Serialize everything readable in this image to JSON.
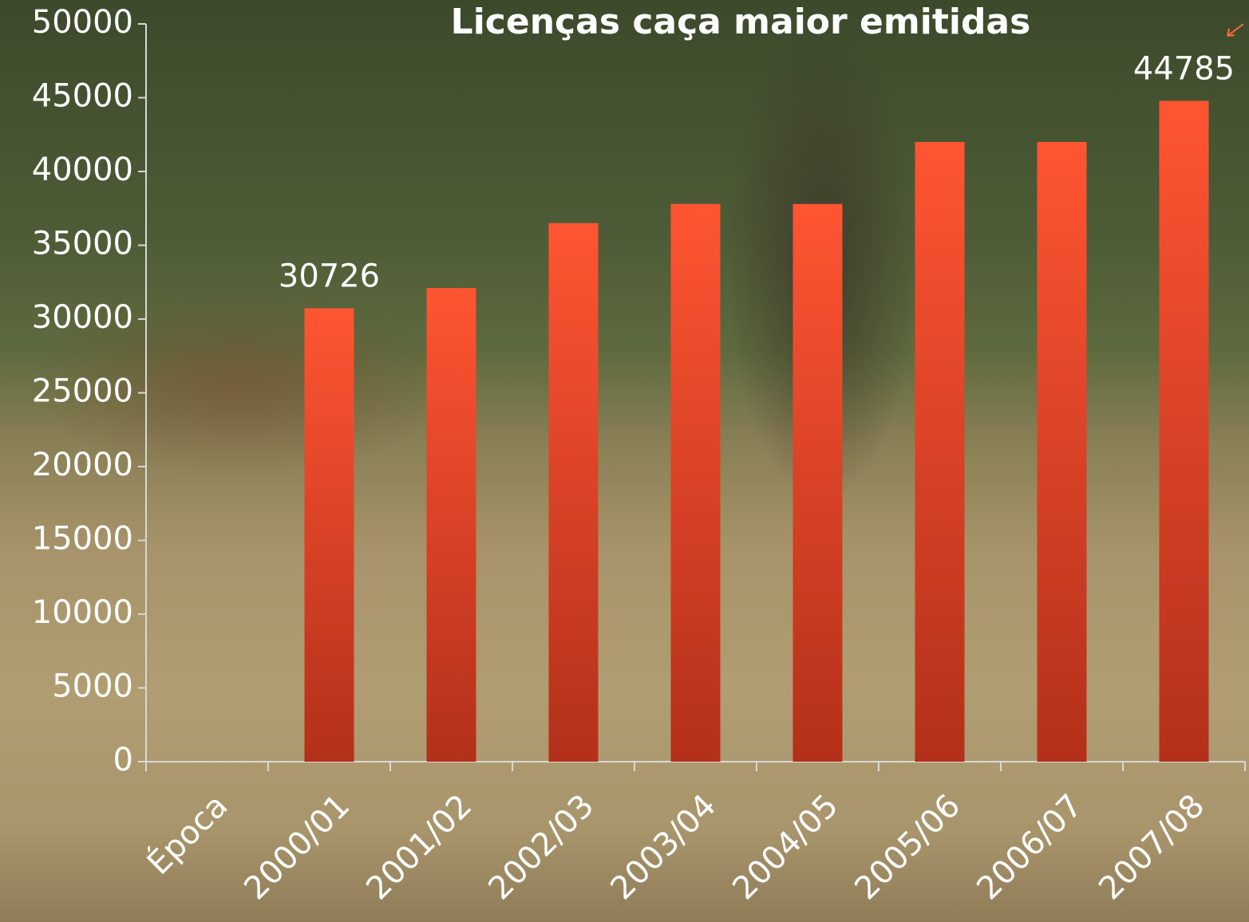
{
  "chart_data": {
    "type": "bar",
    "title": "Licenças caça maior emitidas",
    "categories": [
      "Época",
      "2000/01",
      "2001/02",
      "2002/03",
      "2003/04",
      "2004/05",
      "2005/06",
      "2006/07",
      "2007/08"
    ],
    "values": [
      null,
      30726,
      32100,
      36500,
      37800,
      37800,
      42000,
      42000,
      44785
    ],
    "labeled_points": [
      1,
      8
    ],
    "color_top": "#ff5533",
    "color_bottom": "#b3301a",
    "ylim": [
      0,
      50000
    ],
    "yticks": [
      0,
      5000,
      10000,
      15000,
      20000,
      25000,
      30000,
      35000,
      40000,
      45000,
      50000
    ],
    "grid": false
  }
}
